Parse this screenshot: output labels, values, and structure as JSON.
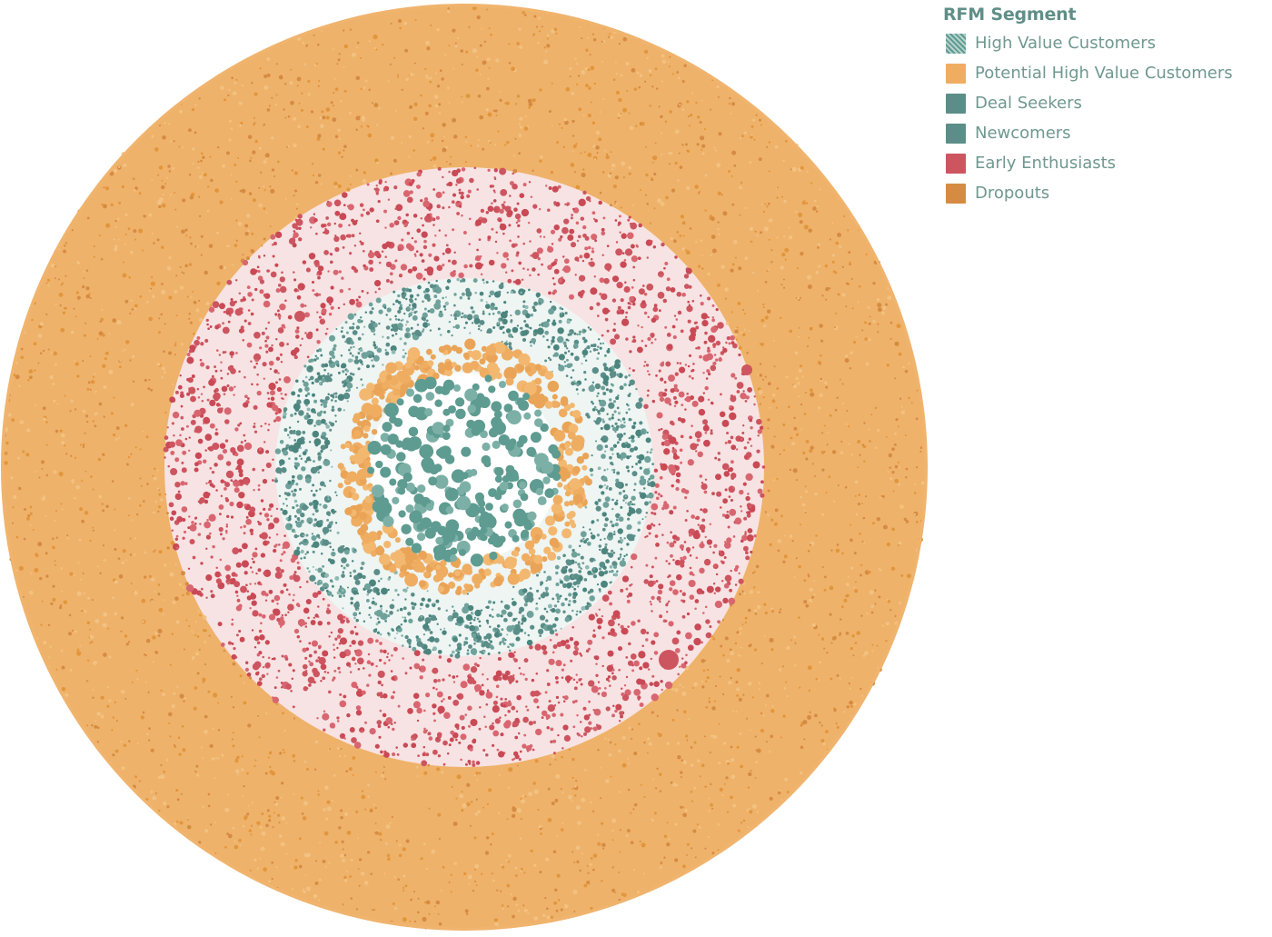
{
  "legend": {
    "title": "RFM Segment",
    "items": [
      {
        "label": "High Value Customers",
        "color": "#5e9b91",
        "pattern": "hatched"
      },
      {
        "label": "Potential High Value Customers",
        "color": "#efad62",
        "pattern": "solid"
      },
      {
        "label": "Deal Seekers",
        "color": "#5b8e88",
        "pattern": "solid"
      },
      {
        "label": "Newcomers",
        "color": "#5b8e88",
        "pattern": "solid"
      },
      {
        "label": "Early Enthusiasts",
        "color": "#cd5560",
        "pattern": "solid"
      },
      {
        "label": "Dropouts",
        "color": "#d68b42",
        "pattern": "solid"
      }
    ]
  },
  "chart_data": {
    "type": "scatter",
    "title": "",
    "legend_title": "RFM Segment",
    "legend_position": "top-right",
    "layout": "packed concentric circles",
    "series": [
      {
        "name": "High Value Customers",
        "color": "#5e9b91",
        "ring_order": 1
      },
      {
        "name": "Potential High Value Customers",
        "color": "#efad62",
        "ring_order": 2
      },
      {
        "name": "Deal Seekers",
        "color": "#5b8e88",
        "ring_order": 3
      },
      {
        "name": "Newcomers",
        "color": "#5b8e88",
        "ring_order": 3
      },
      {
        "name": "Early Enthusiasts",
        "color": "#cd5560",
        "ring_order": 4
      },
      {
        "name": "Dropouts",
        "color": "#d68b42",
        "ring_order": 5
      }
    ]
  }
}
